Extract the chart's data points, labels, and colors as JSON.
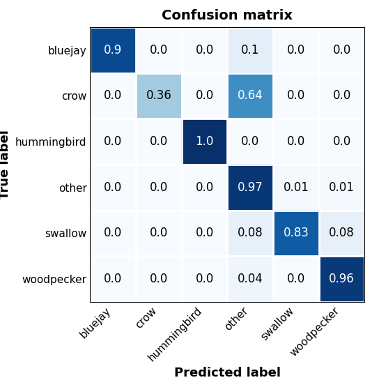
{
  "title": "Confusion matrix",
  "xlabel": "Predicted label",
  "ylabel": "True label",
  "classes": [
    "bluejay",
    "crow",
    "hummingbird",
    "other",
    "swallow",
    "woodpecker"
  ],
  "matrix": [
    [
      0.9,
      0.0,
      0.0,
      0.1,
      0.0,
      0.0
    ],
    [
      0.0,
      0.36,
      0.0,
      0.64,
      0.0,
      0.0
    ],
    [
      0.0,
      0.0,
      1.0,
      0.0,
      0.0,
      0.0
    ],
    [
      0.0,
      0.0,
      0.0,
      0.97,
      0.01,
      0.01
    ],
    [
      0.0,
      0.0,
      0.0,
      0.08,
      0.83,
      0.08
    ],
    [
      0.0,
      0.0,
      0.0,
      0.04,
      0.0,
      0.96
    ]
  ],
  "cmap": "Blues",
  "title_fontsize": 14,
  "label_fontsize": 13,
  "tick_fontsize": 11,
  "cell_fontsize": 12,
  "title_fontweight": "bold",
  "label_fontweight": "bold",
  "thresh_white": 0.5
}
